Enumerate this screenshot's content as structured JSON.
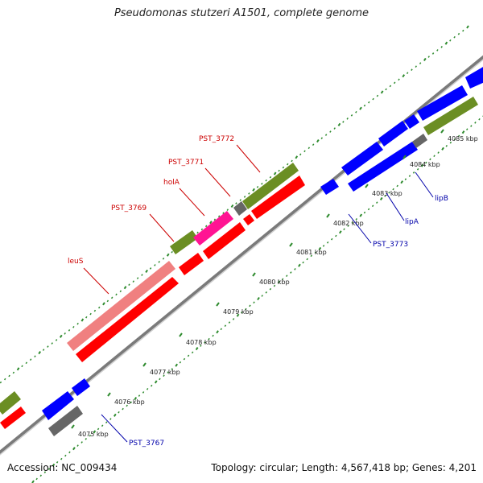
{
  "title": "Pseudomonas stutzeri A1501, complete genome",
  "accession": "Accession: NC_009434",
  "summary": "Topology: circular; Length: 4,567,418 bp; Genes: 4,201",
  "colors": {
    "backbone": "#888888",
    "forward_cds": "#ff0000",
    "reverse_cds": "#0000ff",
    "category_olive": "#6b8e23",
    "category_pink": "#f08080",
    "category_magenta": "#ff1493",
    "category_gray": "#666666",
    "gc_skew": "#2e8b2e",
    "label_forward": "#cc0000",
    "label_reverse": "#0000aa"
  },
  "scale": {
    "tick_labels": [
      "4075 kbp",
      "4076 kbp",
      "4077 kbp",
      "4078 kbp",
      "4079 kbp",
      "4080 kbp",
      "4081 kbp",
      "4082 kbp",
      "4083 kbp",
      "4084 kbp",
      "4085 kbp"
    ]
  },
  "gene_labels": {
    "forward": [
      "leuS",
      "PST_3769",
      "holA",
      "PST_3771",
      "PST_3772"
    ],
    "reverse": [
      "PST_3767",
      "PST_3773",
      "lipA",
      "lipB"
    ]
  }
}
